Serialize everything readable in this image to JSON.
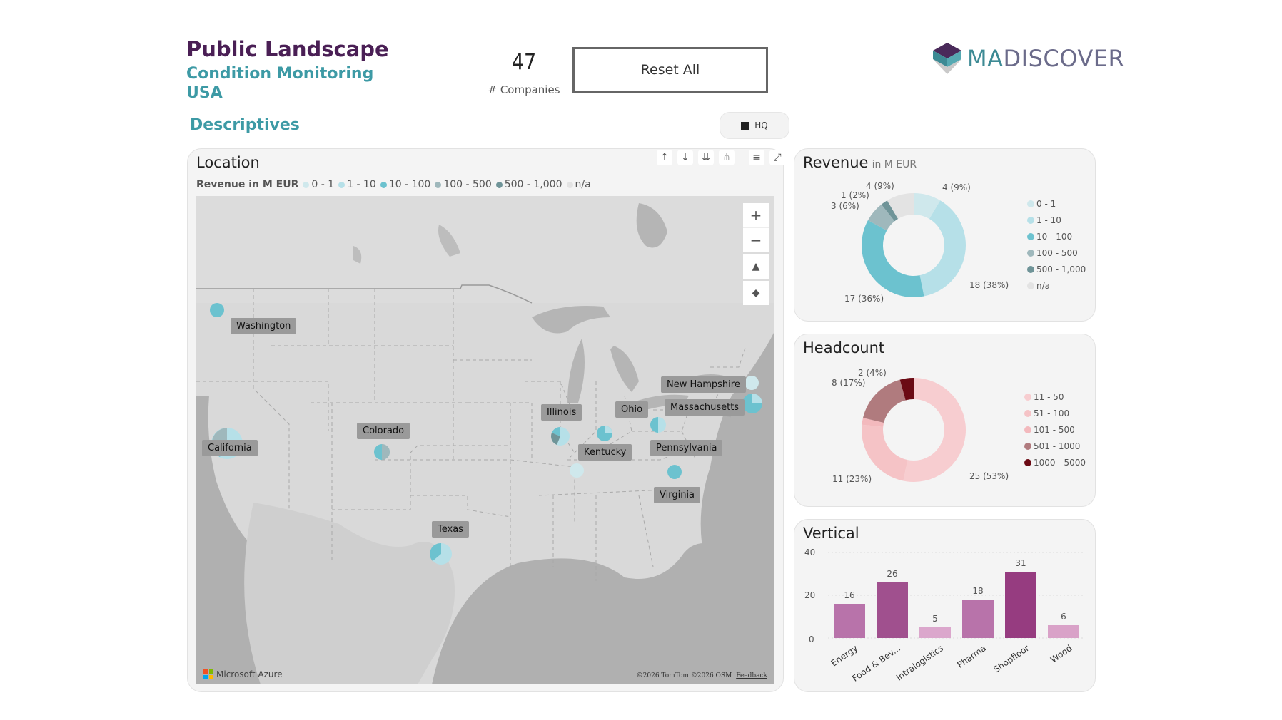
{
  "header": {
    "title": "Public Landscape",
    "subtitle_line1": "Condition Monitoring",
    "subtitle_line2": "USA",
    "count_value": "47",
    "count_label": "# Companies",
    "reset_label": "Reset All",
    "logo_prefix": "MA",
    "logo_suffix": "DISCOVER",
    "section_title": "Descriptives",
    "hq_label": "HQ"
  },
  "location": {
    "title": "Location",
    "legend_title": "Revenue in M EUR",
    "legend": [
      {
        "label": "0 - 1",
        "color": "#cfe8ec"
      },
      {
        "label": "1 - 10",
        "color": "#b6e0e8"
      },
      {
        "label": "10 - 100",
        "color": "#6cc2cf"
      },
      {
        "label": "100 - 500",
        "color": "#9fb8bc"
      },
      {
        "label": "500 - 1,000",
        "color": "#6f9498"
      },
      {
        "label": "n/a",
        "color": "#e3e3e3"
      }
    ],
    "toolbar_icons": [
      "arrow-up-icon",
      "arrow-down-icon",
      "double-arrow-down-icon",
      "hierarchy-icon",
      "filter-icon",
      "focus-mode-icon"
    ],
    "states": [
      {
        "name": "Washington"
      },
      {
        "name": "California"
      },
      {
        "name": "Colorado"
      },
      {
        "name": "Texas"
      },
      {
        "name": "Illinois"
      },
      {
        "name": "Kentucky"
      },
      {
        "name": "Ohio"
      },
      {
        "name": "Pennsylvania"
      },
      {
        "name": "Virginia"
      },
      {
        "name": "Massachusetts"
      },
      {
        "name": "New Hampshire"
      }
    ],
    "attribution_brand": "Microsoft Azure",
    "attribution_text": "©2026 TomTom ©2026 OSM",
    "feedback": "Feedback"
  },
  "revenue": {
    "title": "Revenue",
    "subtitle": "in M EUR",
    "legend": [
      {
        "label": "0 - 1",
        "color": "#cfe8ec"
      },
      {
        "label": "1 - 10",
        "color": "#b6e0e8"
      },
      {
        "label": "10 - 100",
        "color": "#6cc2cf"
      },
      {
        "label": "100 - 500",
        "color": "#9fb8bc"
      },
      {
        "label": "500 - 1,000",
        "color": "#6f9498"
      },
      {
        "label": "n/a",
        "color": "#e3e3e3"
      }
    ],
    "slice_labels": [
      "18 (38%)",
      "17 (36%)",
      "3 (6%)",
      "1 (2%)",
      "4 (9%)",
      "4 (9%)"
    ]
  },
  "headcount": {
    "title": "Headcount",
    "legend": [
      {
        "label": "11 - 50",
        "color": "#f7cdd0"
      },
      {
        "label": "51 - 100",
        "color": "#f5c3c6"
      },
      {
        "label": "101 - 500",
        "color": "#f3b9bd"
      },
      {
        "label": "501 - 1000",
        "color": "#b07b7e"
      },
      {
        "label": "1000 - 5000",
        "color": "#6b0a14"
      }
    ],
    "slice_labels": [
      "25 (53%)",
      "11 (23%)",
      "8 (17%)",
      "2 (4%)"
    ]
  },
  "vertical": {
    "title": "Vertical",
    "y_ticks": [
      "40",
      "20",
      "0"
    ]
  },
  "chart_data": [
    {
      "type": "pie",
      "title": "Revenue",
      "categories": [
        "0 - 1",
        "1 - 10",
        "10 - 100",
        "100 - 500",
        "500 - 1,000",
        "n/a"
      ],
      "values": [
        4,
        18,
        17,
        3,
        1,
        4
      ]
    },
    {
      "type": "pie",
      "title": "Headcount",
      "categories": [
        "11 - 50",
        "51 - 100",
        "101 - 500",
        "501 - 1000",
        "1000 - 5000"
      ],
      "values": [
        25,
        11,
        1,
        8,
        2
      ]
    },
    {
      "type": "bar",
      "title": "Vertical",
      "categories": [
        "Energy",
        "Food & Bev...",
        "Intralogistics",
        "Pharma",
        "Shopfloor",
        "Wood"
      ],
      "values": [
        16,
        26,
        5,
        18,
        31,
        6
      ],
      "colors": [
        "#b873aa",
        "#a0508e",
        "#dba7cc",
        "#b873aa",
        "#963c80",
        "#d9a2c8"
      ],
      "ylim": [
        0,
        40
      ]
    }
  ]
}
